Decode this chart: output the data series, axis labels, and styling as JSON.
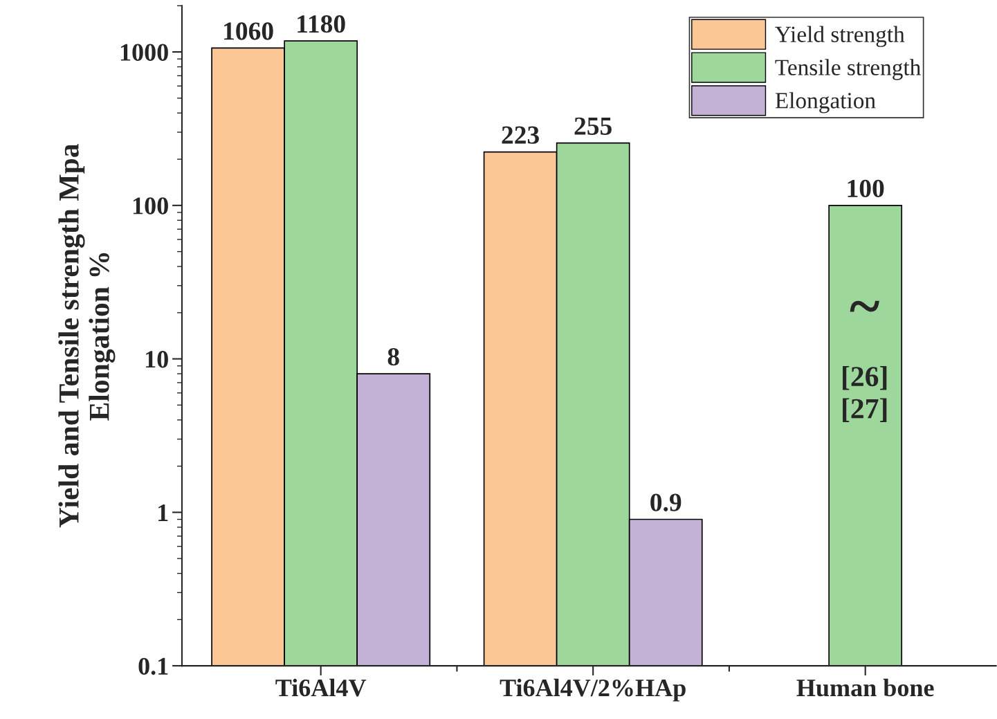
{
  "chart_data": {
    "type": "bar",
    "ylabel": "Yield and Tensile strength Mpa\nElongation %",
    "categories": [
      "Ti6Al4V",
      "Ti6Al4V/2%HAp",
      "Human bone"
    ],
    "series": [
      {
        "name": "Yield strength",
        "color": "#fac795",
        "values": [
          1060,
          223,
          null
        ]
      },
      {
        "name": "Tensile strength",
        "color": "#9dd79b",
        "values": [
          1180,
          255,
          100
        ]
      },
      {
        "name": "Elongation",
        "color": "#c3b1d6",
        "values": [
          8,
          0.9,
          null
        ]
      }
    ],
    "log": "y",
    "ylim": [
      0.1,
      2000
    ],
    "yticks": [
      0.1,
      1,
      10,
      100,
      1000
    ],
    "data_labels": true,
    "legend": "top right",
    "grid": false,
    "annotations": [
      "~",
      "[26]\n[27]"
    ]
  }
}
